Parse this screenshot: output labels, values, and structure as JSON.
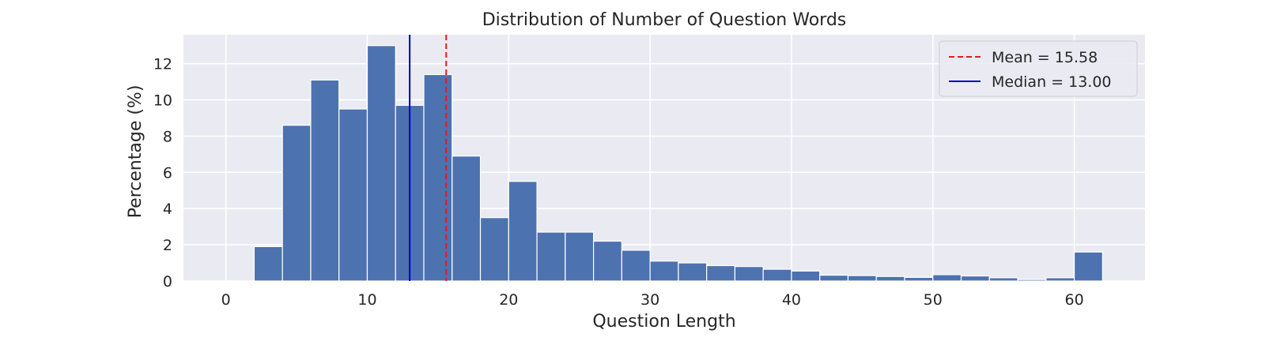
{
  "chart_data": {
    "type": "bar",
    "title": "Distribution of Number of Question Words",
    "xlabel": "Question Length",
    "ylabel": "Percentage (%)",
    "xlim": [
      -3,
      65
    ],
    "ylim": [
      0,
      13.6
    ],
    "x_ticks": [
      0,
      10,
      20,
      30,
      40,
      50,
      60
    ],
    "y_ticks": [
      0,
      2,
      4,
      6,
      8,
      10,
      12
    ],
    "grid": true,
    "legend_position": "top-right",
    "bin_width": 2,
    "bins": [
      {
        "start": 2,
        "value": 1.9
      },
      {
        "start": 4,
        "value": 8.6
      },
      {
        "start": 6,
        "value": 11.1
      },
      {
        "start": 8,
        "value": 9.5
      },
      {
        "start": 10,
        "value": 13.0
      },
      {
        "start": 12,
        "value": 9.7
      },
      {
        "start": 14,
        "value": 11.4
      },
      {
        "start": 16,
        "value": 6.9
      },
      {
        "start": 18,
        "value": 3.5
      },
      {
        "start": 20,
        "value": 5.5
      },
      {
        "start": 22,
        "value": 2.7
      },
      {
        "start": 24,
        "value": 2.7
      },
      {
        "start": 26,
        "value": 2.2
      },
      {
        "start": 28,
        "value": 1.7
      },
      {
        "start": 30,
        "value": 1.1
      },
      {
        "start": 32,
        "value": 1.0
      },
      {
        "start": 34,
        "value": 0.85
      },
      {
        "start": 36,
        "value": 0.8
      },
      {
        "start": 38,
        "value": 0.65
      },
      {
        "start": 40,
        "value": 0.55
      },
      {
        "start": 42,
        "value": 0.32
      },
      {
        "start": 44,
        "value": 0.3
      },
      {
        "start": 46,
        "value": 0.25
      },
      {
        "start": 48,
        "value": 0.2
      },
      {
        "start": 50,
        "value": 0.35
      },
      {
        "start": 52,
        "value": 0.28
      },
      {
        "start": 54,
        "value": 0.18
      },
      {
        "start": 56,
        "value": 0.08
      },
      {
        "start": 58,
        "value": 0.18
      },
      {
        "start": 60,
        "value": 1.6
      }
    ],
    "reference_lines": [
      {
        "name": "Mean = 15.58",
        "value": 15.58,
        "color": "#e41a1c",
        "style": "dashed"
      },
      {
        "name": "Median = 13.00",
        "value": 13.0,
        "color": "#0000cc",
        "style": "solid"
      }
    ],
    "colors": {
      "bar": "#4c72b0",
      "background": "#eaeaf2",
      "grid": "#ffffff"
    }
  }
}
